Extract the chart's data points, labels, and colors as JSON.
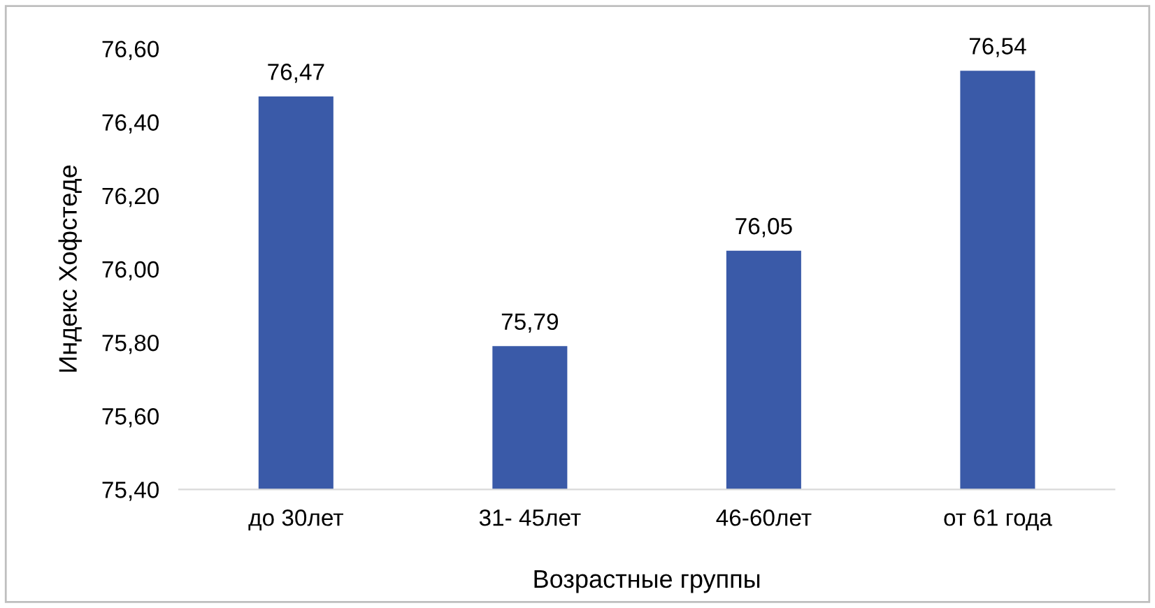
{
  "chart_data": {
    "type": "bar",
    "xlabel": "Возрастные группы",
    "ylabel": "Индекс Хофстеде",
    "categories": [
      "до 30лет",
      "31- 45лет",
      "46-60лет",
      "от 61 года"
    ],
    "values": [
      76.47,
      75.79,
      76.05,
      76.54
    ],
    "value_labels": [
      "76,47",
      "75,79",
      "76,05",
      "76,54"
    ],
    "color": "#3a5aa8",
    "ylim": [
      75.4,
      76.6
    ],
    "yticks": [
      {
        "value": 75.4,
        "label": "75,40"
      },
      {
        "value": 75.6,
        "label": "75,60"
      },
      {
        "value": 75.8,
        "label": "75,80"
      },
      {
        "value": 76.0,
        "label": "76,00"
      },
      {
        "value": 76.2,
        "label": "76,20"
      },
      {
        "value": 76.4,
        "label": "76,40"
      },
      {
        "value": 76.6,
        "label": "76,60"
      }
    ],
    "grid": false,
    "legend": false
  }
}
